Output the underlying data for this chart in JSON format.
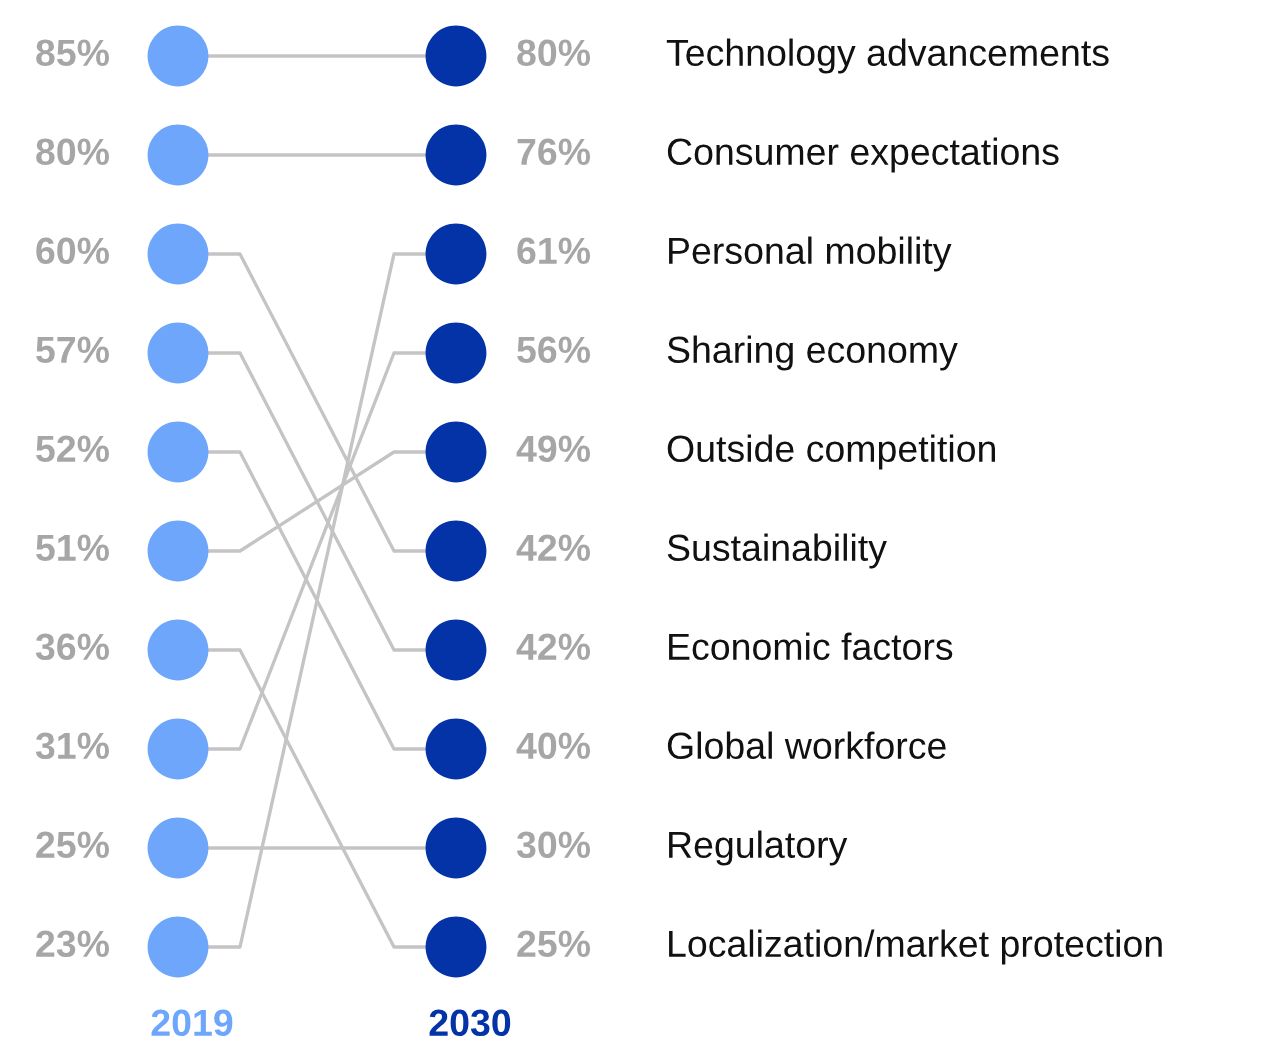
{
  "chart_data": {
    "type": "other",
    "categories": [
      "2019",
      "2030"
    ],
    "colors": [
      "#6ea6fc",
      "#0433a7"
    ],
    "series": [
      {
        "name": "Technology advancements",
        "values": [
          85,
          80
        ],
        "value_labels": [
          "85%",
          "80%"
        ]
      },
      {
        "name": "Consumer expectations",
        "values": [
          80,
          76
        ],
        "value_labels": [
          "80%",
          "76%"
        ]
      },
      {
        "name": "Personal mobility",
        "values": [
          23,
          61
        ],
        "value_labels": [
          "23%",
          "61%"
        ]
      },
      {
        "name": "Sharing economy",
        "values": [
          31,
          56
        ],
        "value_labels": [
          "31%",
          "56%"
        ]
      },
      {
        "name": "Outside competition",
        "values": [
          51,
          49
        ],
        "value_labels": [
          "51%",
          "49%"
        ]
      },
      {
        "name": "Sustainability",
        "values": [
          60,
          42
        ],
        "value_labels": [
          "60%",
          "42%"
        ]
      },
      {
        "name": "Economic factors",
        "values": [
          57,
          42
        ],
        "value_labels": [
          "57%",
          "42%"
        ]
      },
      {
        "name": "Global workforce",
        "values": [
          52,
          40
        ],
        "value_labels": [
          "52%",
          "40%"
        ]
      },
      {
        "name": "Regulatory",
        "values": [
          25,
          30
        ],
        "value_labels": [
          "25%",
          "30%"
        ]
      },
      {
        "name": "Localization/market protection",
        "values": [
          36,
          25
        ],
        "value_labels": [
          "36%",
          "25%"
        ]
      }
    ]
  }
}
